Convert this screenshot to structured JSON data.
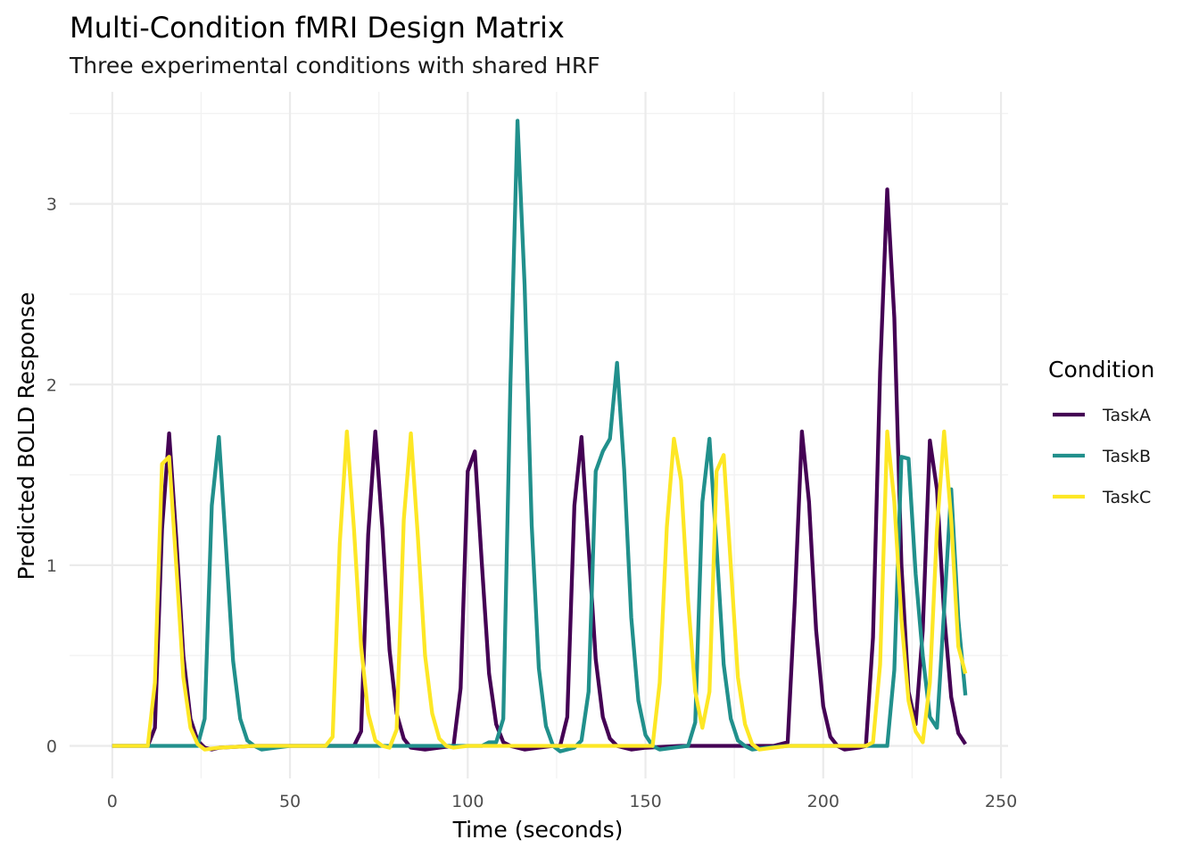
{
  "chart_data": {
    "type": "line",
    "title": "Multi-Condition fMRI Design Matrix",
    "subtitle": "Three experimental conditions with shared HRF",
    "xlabel": "Time (seconds)",
    "ylabel": "Predicted BOLD Response",
    "xlim": [
      -12,
      252
    ],
    "ylim": [
      -0.18,
      3.62
    ],
    "x_ticks": [
      0,
      50,
      100,
      150,
      200,
      250
    ],
    "x_tick_labels": [
      "0",
      "50",
      "100",
      "150",
      "200",
      "250"
    ],
    "y_ticks": [
      0,
      1,
      2,
      3
    ],
    "y_tick_labels": [
      "0",
      "1",
      "2",
      "3"
    ],
    "grid": true,
    "legend": {
      "title": "Condition",
      "position": "right"
    },
    "series": [
      {
        "name": "TaskA",
        "color": "#440154",
        "points": [
          [
            0,
            0
          ],
          [
            10,
            0
          ],
          [
            12,
            0.1
          ],
          [
            14,
            1.2
          ],
          [
            16,
            1.73
          ],
          [
            18,
            1.15
          ],
          [
            20,
            0.5
          ],
          [
            22,
            0.15
          ],
          [
            24,
            0.03
          ],
          [
            26,
            -0.01
          ],
          [
            28,
            -0.02
          ],
          [
            30,
            -0.01
          ],
          [
            40,
            0
          ],
          [
            60,
            0
          ],
          [
            68,
            0
          ],
          [
            70,
            0.08
          ],
          [
            72,
            1.17
          ],
          [
            74,
            1.74
          ],
          [
            76,
            1.2
          ],
          [
            78,
            0.53
          ],
          [
            80,
            0.18
          ],
          [
            82,
            0.04
          ],
          [
            84,
            -0.01
          ],
          [
            88,
            -0.02
          ],
          [
            92,
            -0.01
          ],
          [
            96,
            0
          ],
          [
            98,
            0.32
          ],
          [
            100,
            1.52
          ],
          [
            102,
            1.63
          ],
          [
            104,
            1.0
          ],
          [
            106,
            0.4
          ],
          [
            108,
            0.12
          ],
          [
            110,
            0.02
          ],
          [
            112,
            0
          ],
          [
            116,
            -0.02
          ],
          [
            120,
            -0.01
          ],
          [
            124,
            0
          ],
          [
            126,
            0
          ],
          [
            128,
            0.16
          ],
          [
            130,
            1.33
          ],
          [
            132,
            1.71
          ],
          [
            134,
            1.1
          ],
          [
            136,
            0.48
          ],
          [
            138,
            0.16
          ],
          [
            140,
            0.04
          ],
          [
            142,
            0
          ],
          [
            146,
            -0.02
          ],
          [
            150,
            -0.01
          ],
          [
            160,
            0
          ],
          [
            186,
            0
          ],
          [
            190,
            0.02
          ],
          [
            192,
            0.8
          ],
          [
            194,
            1.74
          ],
          [
            196,
            1.35
          ],
          [
            198,
            0.64
          ],
          [
            200,
            0.22
          ],
          [
            202,
            0.05
          ],
          [
            204,
            0
          ],
          [
            206,
            -0.02
          ],
          [
            210,
            -0.01
          ],
          [
            212,
            0
          ],
          [
            214,
            0.6
          ],
          [
            216,
            2.07
          ],
          [
            218,
            3.08
          ],
          [
            220,
            2.37
          ],
          [
            222,
            1.0
          ],
          [
            224,
            0.3
          ],
          [
            226,
            0.12
          ],
          [
            228,
            0.64
          ],
          [
            230,
            1.69
          ],
          [
            232,
            1.42
          ],
          [
            234,
            0.73
          ],
          [
            236,
            0.27
          ],
          [
            238,
            0.07
          ],
          [
            240,
            0.01
          ]
        ]
      },
      {
        "name": "TaskB",
        "color": "#21908C",
        "points": [
          [
            0,
            0
          ],
          [
            24,
            0
          ],
          [
            26,
            0.15
          ],
          [
            28,
            1.33
          ],
          [
            30,
            1.71
          ],
          [
            32,
            1.1
          ],
          [
            34,
            0.47
          ],
          [
            36,
            0.15
          ],
          [
            38,
            0.03
          ],
          [
            40,
            0
          ],
          [
            42,
            -0.02
          ],
          [
            46,
            -0.01
          ],
          [
            50,
            0
          ],
          [
            100,
            0
          ],
          [
            104,
            0
          ],
          [
            106,
            0.02
          ],
          [
            108,
            0.02
          ],
          [
            110,
            0.15
          ],
          [
            112,
            2.0
          ],
          [
            114,
            3.46
          ],
          [
            116,
            2.55
          ],
          [
            118,
            1.22
          ],
          [
            120,
            0.43
          ],
          [
            122,
            0.11
          ],
          [
            124,
            0
          ],
          [
            126,
            -0.03
          ],
          [
            130,
            -0.01
          ],
          [
            132,
            0.03
          ],
          [
            134,
            0.3
          ],
          [
            136,
            1.52
          ],
          [
            138,
            1.63
          ],
          [
            140,
            1.7
          ],
          [
            142,
            2.12
          ],
          [
            144,
            1.53
          ],
          [
            146,
            0.71
          ],
          [
            148,
            0.25
          ],
          [
            150,
            0.06
          ],
          [
            152,
            0
          ],
          [
            154,
            -0.02
          ],
          [
            158,
            -0.01
          ],
          [
            162,
            0
          ],
          [
            164,
            0.13
          ],
          [
            166,
            1.35
          ],
          [
            168,
            1.7
          ],
          [
            170,
            1.1
          ],
          [
            172,
            0.45
          ],
          [
            174,
            0.15
          ],
          [
            176,
            0.03
          ],
          [
            178,
            0
          ],
          [
            180,
            -0.02
          ],
          [
            184,
            -0.01
          ],
          [
            190,
            0
          ],
          [
            216,
            0
          ],
          [
            218,
            0
          ],
          [
            220,
            0.42
          ],
          [
            222,
            1.6
          ],
          [
            224,
            1.59
          ],
          [
            226,
            0.95
          ],
          [
            228,
            0.5
          ],
          [
            230,
            0.16
          ],
          [
            232,
            0.1
          ],
          [
            234,
            0.75
          ],
          [
            236,
            1.42
          ],
          [
            238,
            0.7
          ],
          [
            240,
            0.28
          ]
        ]
      },
      {
        "name": "TaskC",
        "color": "#FDE725",
        "points": [
          [
            0,
            0
          ],
          [
            10,
            0
          ],
          [
            12,
            0.35
          ],
          [
            14,
            1.56
          ],
          [
            16,
            1.6
          ],
          [
            18,
            1.0
          ],
          [
            20,
            0.38
          ],
          [
            22,
            0.1
          ],
          [
            24,
            0.01
          ],
          [
            26,
            -0.02
          ],
          [
            30,
            -0.01
          ],
          [
            40,
            0
          ],
          [
            60,
            0
          ],
          [
            62,
            0.05
          ],
          [
            64,
            1.12
          ],
          [
            66,
            1.74
          ],
          [
            68,
            1.2
          ],
          [
            70,
            0.55
          ],
          [
            72,
            0.18
          ],
          [
            74,
            0.03
          ],
          [
            76,
            0
          ],
          [
            78,
            -0.01
          ],
          [
            80,
            0.09
          ],
          [
            82,
            1.25
          ],
          [
            84,
            1.73
          ],
          [
            86,
            1.15
          ],
          [
            88,
            0.5
          ],
          [
            90,
            0.18
          ],
          [
            92,
            0.04
          ],
          [
            94,
            0
          ],
          [
            96,
            -0.01
          ],
          [
            100,
            0
          ],
          [
            150,
            0
          ],
          [
            152,
            0
          ],
          [
            154,
            0.35
          ],
          [
            156,
            1.21
          ],
          [
            158,
            1.7
          ],
          [
            160,
            1.47
          ],
          [
            162,
            0.8
          ],
          [
            164,
            0.3
          ],
          [
            166,
            0.1
          ],
          [
            168,
            0.3
          ],
          [
            170,
            1.52
          ],
          [
            172,
            1.61
          ],
          [
            174,
            1.0
          ],
          [
            176,
            0.38
          ],
          [
            178,
            0.12
          ],
          [
            180,
            0.01
          ],
          [
            182,
            -0.02
          ],
          [
            186,
            -0.01
          ],
          [
            190,
            0
          ],
          [
            212,
            0
          ],
          [
            214,
            0.02
          ],
          [
            216,
            0.45
          ],
          [
            218,
            1.74
          ],
          [
            220,
            1.35
          ],
          [
            222,
            0.7
          ],
          [
            224,
            0.25
          ],
          [
            226,
            0.08
          ],
          [
            228,
            0.02
          ],
          [
            230,
            0.35
          ],
          [
            232,
            1.2
          ],
          [
            234,
            1.74
          ],
          [
            236,
            1.25
          ],
          [
            238,
            0.55
          ],
          [
            240,
            0.4
          ]
        ]
      }
    ]
  }
}
